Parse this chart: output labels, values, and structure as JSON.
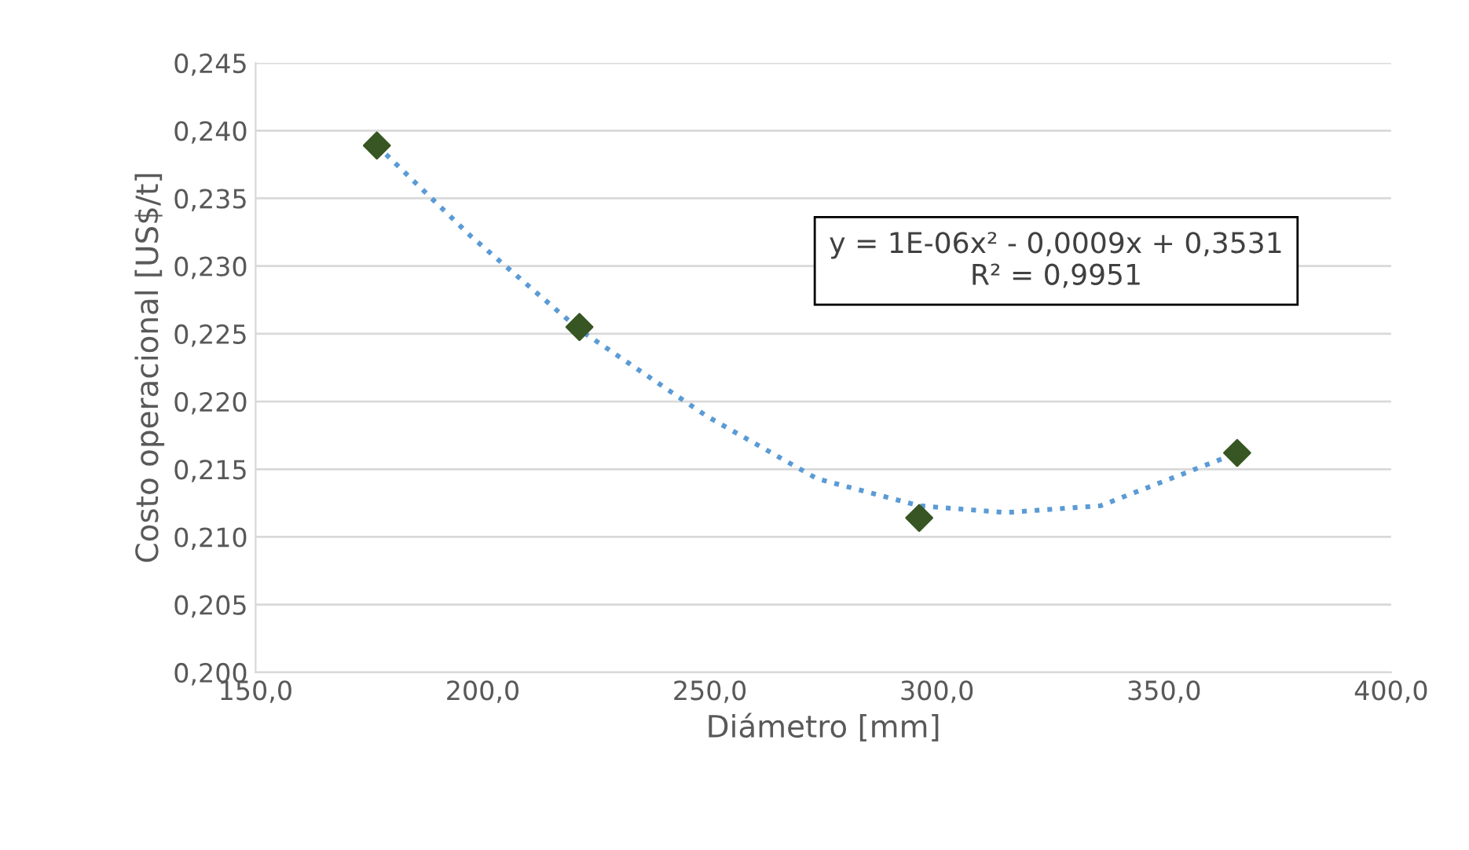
{
  "chart_data": {
    "type": "scatter",
    "xlabel": "Diámetro [mm]",
    "ylabel": "Costo operacional [US$/t]",
    "series": [
      {
        "color": "#375623",
        "marker": "diamond",
        "x": [
          176.7,
          221.3,
          296.1,
          366.1
        ],
        "values": [
          0.2389,
          0.2255,
          0.2114,
          0.2162
        ]
      },
      {
        "type": "line",
        "color": "#5b9bd5",
        "line_style": "dotted",
        "marker": "none",
        "x": [
          176.7,
          197.4,
          221.3,
          249.4,
          273.6,
          296.1,
          315.2,
          336.0,
          366.1
        ],
        "values": [
          0.2389,
          0.2322,
          0.2253,
          0.2189,
          0.2143,
          0.2123,
          0.2118,
          0.2123,
          0.2162
        ]
      }
    ],
    "annotations": [
      "y = 1E-06x² - 0,0009x + 0,3531\nR² = 0,9951"
    ],
    "xlim": [
      150,
      400
    ],
    "xticks": [
      {
        "value": 150,
        "label": "150,0"
      },
      {
        "value": 200,
        "label": "200,0"
      },
      {
        "value": 250,
        "label": "250,0"
      },
      {
        "value": 300,
        "label": "300,0"
      },
      {
        "value": 350,
        "label": "350,0"
      },
      {
        "value": 400,
        "label": "400,0"
      }
    ],
    "ylim": [
      0.2,
      0.245
    ],
    "yticks": [
      {
        "value": 0.2,
        "label": "0,200"
      },
      {
        "value": 0.205,
        "label": "0,205"
      },
      {
        "value": 0.21,
        "label": "0,210"
      },
      {
        "value": 0.215,
        "label": "0,215"
      },
      {
        "value": 0.22,
        "label": "0,220"
      },
      {
        "value": 0.225,
        "label": "0,225"
      },
      {
        "value": 0.23,
        "label": "0,230"
      },
      {
        "value": 0.235,
        "label": "0,235"
      },
      {
        "value": 0.24,
        "label": "0,240"
      },
      {
        "value": 0.245,
        "label": "0,245"
      }
    ],
    "grid": "y"
  }
}
